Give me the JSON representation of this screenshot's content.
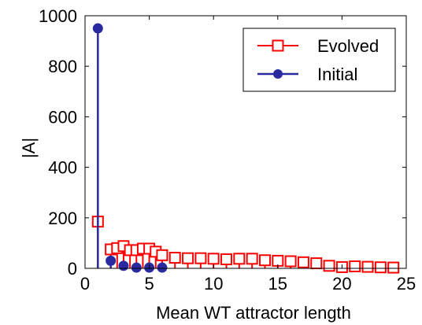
{
  "chart_data": {
    "type": "stem",
    "xlabel": "Mean WT attractor length",
    "ylabel": "|A|",
    "xlim": [
      0,
      25
    ],
    "ylim": [
      0,
      1000
    ],
    "xticks": [
      "0",
      "5",
      "10",
      "15",
      "20",
      "25"
    ],
    "yticks": [
      "0",
      "200",
      "400",
      "600",
      "800",
      "1000"
    ],
    "grid": false,
    "legend_position": "top-right",
    "series": [
      {
        "name": "Evolved",
        "color": "#ff0000",
        "marker": "square-open",
        "points": [
          {
            "x": 1,
            "y": 185
          },
          {
            "x": 2,
            "y": 75
          },
          {
            "x": 2.5,
            "y": 80
          },
          {
            "x": 3,
            "y": 88
          },
          {
            "x": 3.5,
            "y": 72
          },
          {
            "x": 4,
            "y": 72
          },
          {
            "x": 4.5,
            "y": 78
          },
          {
            "x": 5,
            "y": 78
          },
          {
            "x": 5.5,
            "y": 66
          },
          {
            "x": 6,
            "y": 52
          },
          {
            "x": 7,
            "y": 42
          },
          {
            "x": 8,
            "y": 40
          },
          {
            "x": 9,
            "y": 40
          },
          {
            "x": 10,
            "y": 38
          },
          {
            "x": 11,
            "y": 36
          },
          {
            "x": 12,
            "y": 38
          },
          {
            "x": 13,
            "y": 38
          },
          {
            "x": 14,
            "y": 32
          },
          {
            "x": 15,
            "y": 30
          },
          {
            "x": 16,
            "y": 28
          },
          {
            "x": 17,
            "y": 24
          },
          {
            "x": 18,
            "y": 20
          },
          {
            "x": 19,
            "y": 10
          },
          {
            "x": 20,
            "y": 5
          },
          {
            "x": 21,
            "y": 8
          },
          {
            "x": 22,
            "y": 6
          },
          {
            "x": 23,
            "y": 4
          },
          {
            "x": 24,
            "y": 3
          }
        ]
      },
      {
        "name": "Initial",
        "color": "#2a2aa0",
        "marker": "filled-circle",
        "points": [
          {
            "x": 1,
            "y": 950
          },
          {
            "x": 2,
            "y": 30
          },
          {
            "x": 3,
            "y": 10
          },
          {
            "x": 4,
            "y": 3
          },
          {
            "x": 5,
            "y": 3
          },
          {
            "x": 6,
            "y": 3
          }
        ]
      }
    ]
  }
}
